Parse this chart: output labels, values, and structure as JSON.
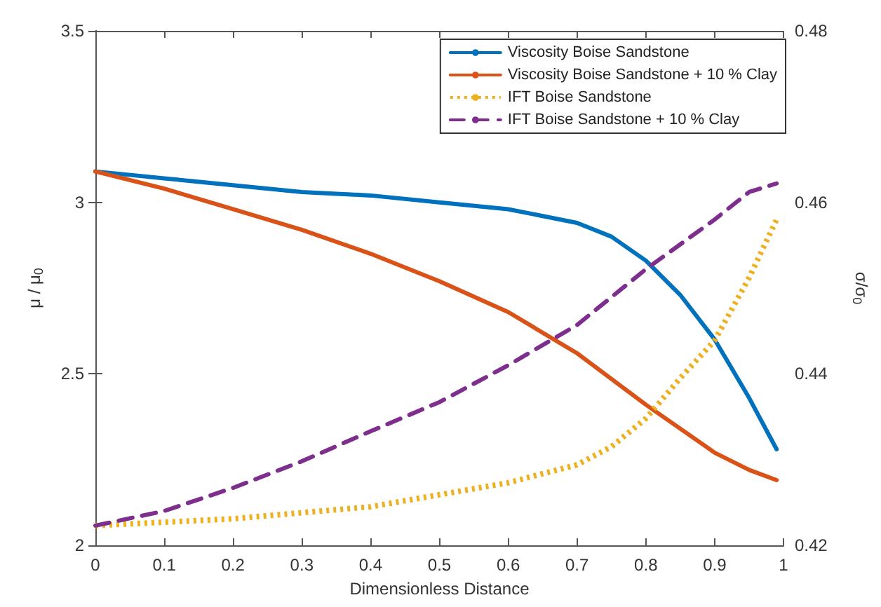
{
  "chart_data": {
    "type": "line",
    "xlabel": "Dimensionless Distance",
    "ylabel": "μ / μ$_{0}$",
    "y2label": "σ/σ$_{0}$",
    "xlim": [
      0,
      1
    ],
    "xticks": [
      0,
      0.1,
      0.2,
      0.3,
      0.4,
      0.5,
      0.6,
      0.7,
      0.8,
      0.9,
      1
    ],
    "ylim": [
      2,
      3.5
    ],
    "yticks": [
      2,
      2.5,
      3,
      3.5
    ],
    "y2lim": [
      0.42,
      0.48
    ],
    "y2ticks": [
      0.42,
      0.44,
      0.46,
      0.48
    ],
    "grid": false,
    "legend": "top right",
    "series": [
      {
        "name": "Viscosity Boise Sandstone",
        "color": "#0072bd",
        "line_style": "solid",
        "x": [
          0,
          0.1,
          0.2,
          0.3,
          0.4,
          0.5,
          0.6,
          0.7,
          0.75,
          0.8,
          0.85,
          0.9,
          0.95,
          0.99
        ],
        "values": [
          3.09,
          3.07,
          3.05,
          3.03,
          3.02,
          3.0,
          2.98,
          2.94,
          2.9,
          2.83,
          2.73,
          2.6,
          2.43,
          2.28
        ]
      },
      {
        "name": "Viscosity Boise Sandstone + 10 % Clay",
        "color": "#d95319",
        "line_style": "solid",
        "x": [
          0,
          0.1,
          0.2,
          0.3,
          0.4,
          0.5,
          0.6,
          0.7,
          0.8,
          0.9,
          0.95,
          0.99
        ],
        "values": [
          3.09,
          3.04,
          2.98,
          2.92,
          2.85,
          2.77,
          2.68,
          2.56,
          2.41,
          2.27,
          2.22,
          2.19
        ]
      },
      {
        "name": "IFT Boise Sandstone",
        "color": "#edb120",
        "line_style": "dotted",
        "axis": "y2",
        "x": [
          0,
          0.2,
          0.4,
          0.5,
          0.6,
          0.7,
          0.75,
          0.8,
          0.85,
          0.9,
          0.95,
          0.99
        ],
        "values": [
          0.4223,
          0.4231,
          0.4245,
          0.4259,
          0.4273,
          0.4294,
          0.4315,
          0.4348,
          0.4395,
          0.4439,
          0.4512,
          0.458
        ]
      },
      {
        "name": "IFT Boise Sandstone + 10 % Clay",
        "color": "#7e2f8e",
        "line_style": "dashed",
        "axis": "y2",
        "x": [
          0,
          0.1,
          0.2,
          0.3,
          0.4,
          0.5,
          0.6,
          0.7,
          0.8,
          0.9,
          0.95,
          0.99
        ],
        "values": [
          0.4223,
          0.424,
          0.4267,
          0.4298,
          0.4333,
          0.4367,
          0.441,
          0.4457,
          0.4522,
          0.458,
          0.4612,
          0.4622
        ]
      }
    ]
  }
}
